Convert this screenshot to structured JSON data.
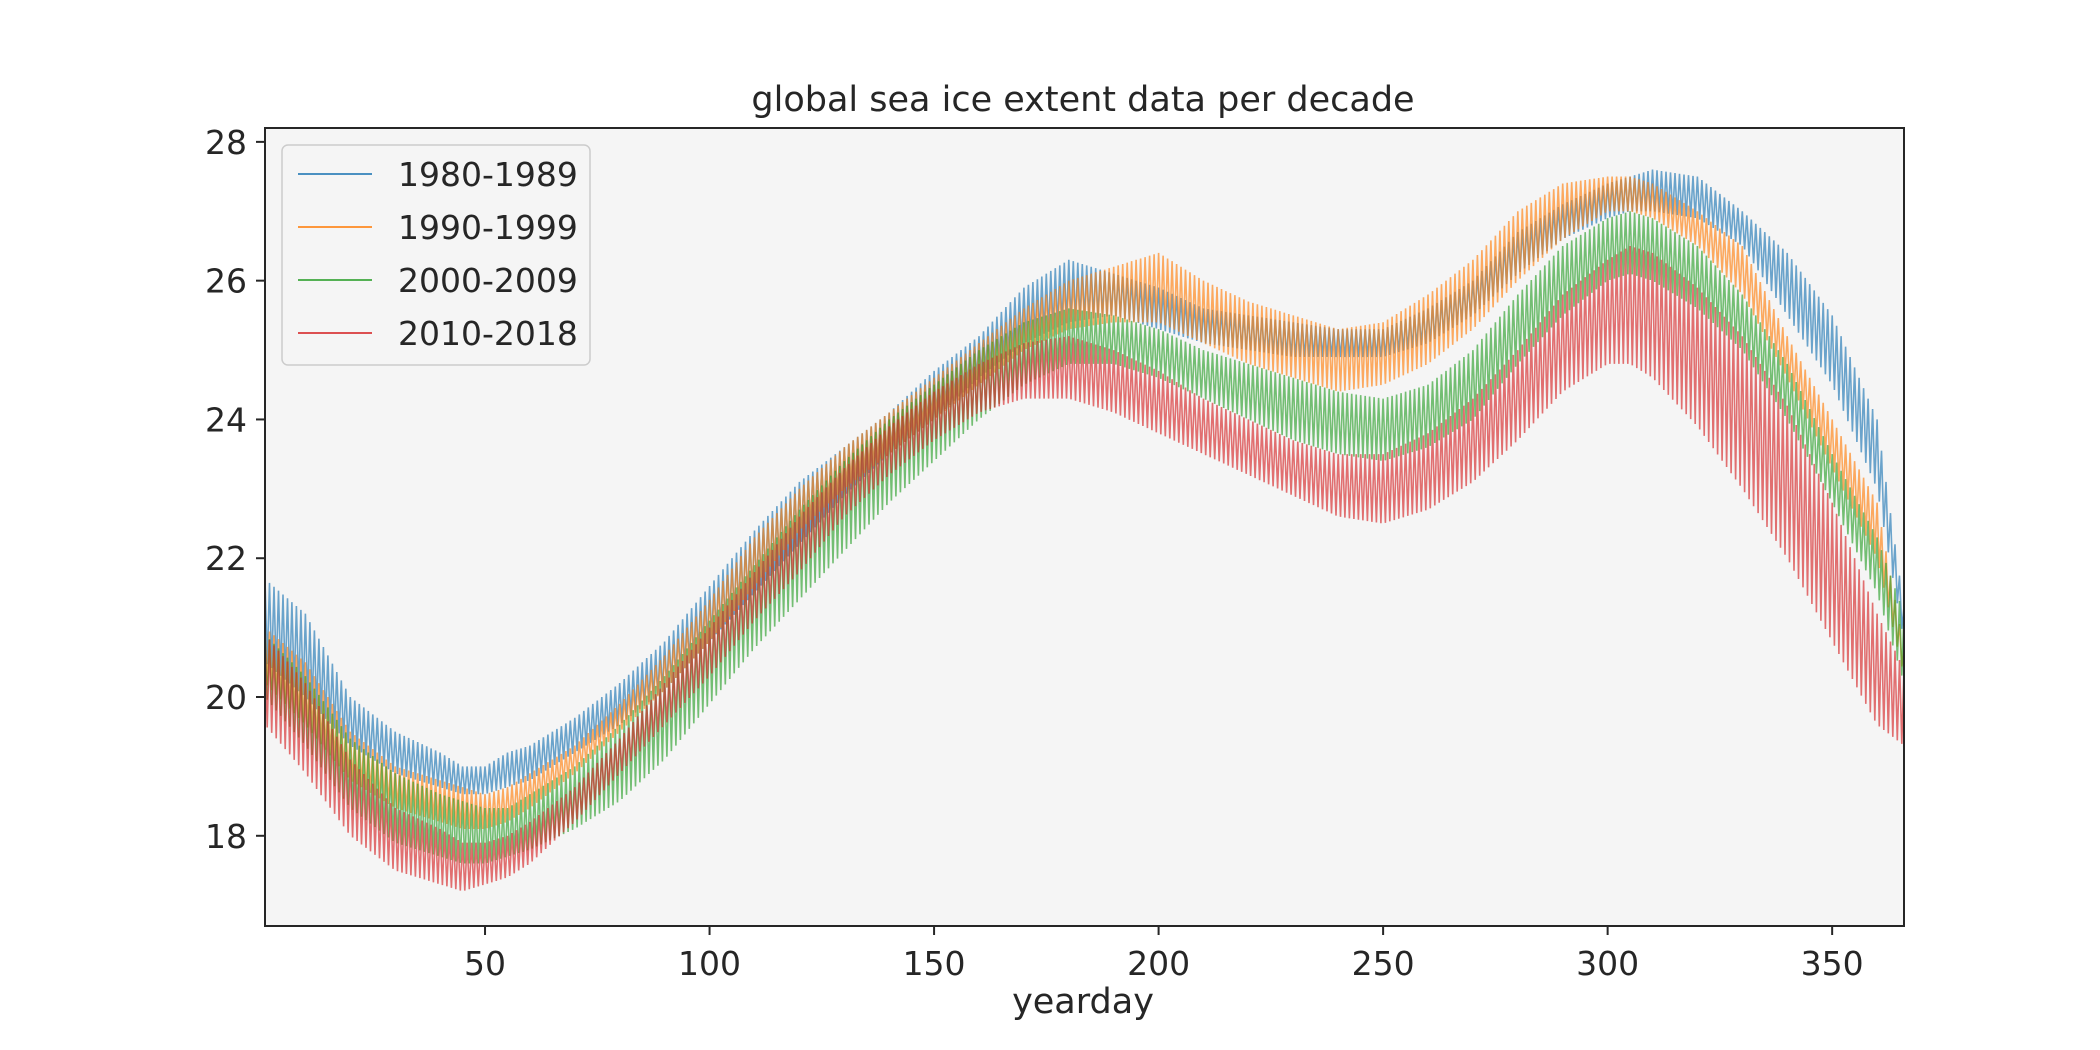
{
  "chart_data": {
    "type": "line",
    "title": "global sea ice extent data per decade",
    "xlabel": "yearday",
    "ylabel": "",
    "xlim": [
      1,
      366
    ],
    "ylim": [
      16.7,
      28.2
    ],
    "xticks": [
      50,
      100,
      150,
      200,
      250,
      300,
      350
    ],
    "yticks": [
      18,
      20,
      22,
      24,
      26,
      28
    ],
    "grid": false,
    "background": "#f5f5f5",
    "legend_position": "top-left",
    "x": [
      1,
      10,
      20,
      30,
      40,
      45,
      50,
      55,
      60,
      70,
      80,
      90,
      100,
      110,
      120,
      130,
      140,
      150,
      160,
      170,
      180,
      190,
      200,
      210,
      220,
      230,
      240,
      250,
      260,
      270,
      280,
      290,
      300,
      305,
      310,
      320,
      330,
      340,
      350,
      360,
      366
    ],
    "series": [
      {
        "name": "1980-1989",
        "color": "#1f77b4",
        "upper": [
          21.7,
          21.2,
          20.0,
          19.5,
          19.2,
          19.0,
          19.0,
          19.2,
          19.3,
          19.7,
          20.2,
          20.8,
          21.6,
          22.4,
          23.1,
          23.6,
          24.1,
          24.7,
          25.2,
          25.9,
          26.3,
          26.1,
          25.9,
          25.6,
          25.5,
          25.4,
          25.3,
          25.3,
          25.6,
          26.0,
          26.7,
          27.1,
          27.4,
          27.5,
          27.6,
          27.5,
          27.0,
          26.4,
          25.5,
          24.0,
          21.3
        ],
        "lower": [
          20.5,
          20.0,
          19.3,
          18.9,
          18.7,
          18.6,
          18.6,
          18.7,
          18.8,
          19.2,
          19.6,
          20.1,
          20.8,
          21.5,
          22.2,
          22.9,
          23.5,
          24.0,
          24.6,
          25.1,
          25.4,
          25.5,
          25.3,
          25.1,
          25.0,
          24.9,
          24.9,
          24.9,
          25.1,
          25.5,
          26.1,
          26.6,
          26.9,
          27.0,
          27.0,
          26.9,
          26.5,
          25.5,
          24.5,
          23.0,
          20.8
        ]
      },
      {
        "name": "1990-1999",
        "color": "#ff7f0e",
        "upper": [
          21.0,
          20.5,
          19.5,
          19.0,
          18.8,
          18.7,
          18.6,
          18.7,
          18.9,
          19.3,
          19.9,
          20.6,
          21.4,
          22.3,
          23.0,
          23.6,
          24.1,
          24.6,
          25.1,
          25.6,
          26.0,
          26.2,
          26.4,
          26.0,
          25.7,
          25.5,
          25.3,
          25.4,
          25.8,
          26.3,
          27.0,
          27.4,
          27.5,
          27.5,
          27.4,
          27.0,
          26.5,
          25.2,
          24.0,
          22.8,
          20.7
        ],
        "lower": [
          20.2,
          19.6,
          18.8,
          18.4,
          18.2,
          18.1,
          18.1,
          18.2,
          18.4,
          18.9,
          19.5,
          20.1,
          20.8,
          21.6,
          22.4,
          23.0,
          23.5,
          24.0,
          24.5,
          25.0,
          25.3,
          25.4,
          25.4,
          25.1,
          24.8,
          24.6,
          24.4,
          24.5,
          24.8,
          25.3,
          26.0,
          26.6,
          27.0,
          27.0,
          26.9,
          26.5,
          25.8,
          24.6,
          23.3,
          22.0,
          20.3
        ]
      },
      {
        "name": "2000-2009",
        "color": "#2ca02c",
        "upper": [
          20.9,
          20.3,
          19.4,
          18.9,
          18.6,
          18.5,
          18.4,
          18.4,
          18.6,
          19.0,
          19.6,
          20.3,
          21.1,
          21.9,
          22.7,
          23.4,
          24.0,
          24.5,
          25.0,
          25.4,
          25.6,
          25.5,
          25.3,
          25.0,
          24.8,
          24.6,
          24.4,
          24.3,
          24.5,
          25.0,
          25.8,
          26.5,
          26.9,
          27.0,
          26.9,
          26.5,
          25.8,
          24.8,
          23.5,
          22.3,
          21.2
        ],
        "lower": [
          20.0,
          19.3,
          18.4,
          17.9,
          17.7,
          17.6,
          17.6,
          17.7,
          17.8,
          18.1,
          18.5,
          19.1,
          19.9,
          20.7,
          21.4,
          22.1,
          22.8,
          23.4,
          24.0,
          24.5,
          24.8,
          24.8,
          24.6,
          24.3,
          24.0,
          23.7,
          23.5,
          23.4,
          23.6,
          24.0,
          24.8,
          25.5,
          26.0,
          26.1,
          26.0,
          25.6,
          25.0,
          24.0,
          22.8,
          21.5,
          20.2
        ]
      },
      {
        "name": "2010-2018",
        "color": "#d62728",
        "upper": [
          20.9,
          20.2,
          19.1,
          18.4,
          18.1,
          17.9,
          17.9,
          18.0,
          18.2,
          18.7,
          19.4,
          20.2,
          21.0,
          21.8,
          22.6,
          23.3,
          23.9,
          24.4,
          24.8,
          25.1,
          25.2,
          25.0,
          24.7,
          24.3,
          24.0,
          23.7,
          23.5,
          23.5,
          23.8,
          24.3,
          25.0,
          25.8,
          26.3,
          26.5,
          26.4,
          25.9,
          25.2,
          24.2,
          22.8,
          21.2,
          20.4
        ],
        "lower": [
          19.6,
          18.9,
          18.0,
          17.5,
          17.3,
          17.2,
          17.3,
          17.4,
          17.6,
          18.2,
          18.9,
          19.6,
          20.3,
          21.1,
          21.8,
          22.6,
          23.2,
          23.7,
          24.1,
          24.3,
          24.3,
          24.1,
          23.8,
          23.5,
          23.2,
          22.9,
          22.6,
          22.5,
          22.7,
          23.1,
          23.7,
          24.4,
          24.8,
          24.8,
          24.6,
          23.9,
          23.0,
          22.0,
          20.8,
          19.6,
          19.3
        ]
      }
    ]
  }
}
